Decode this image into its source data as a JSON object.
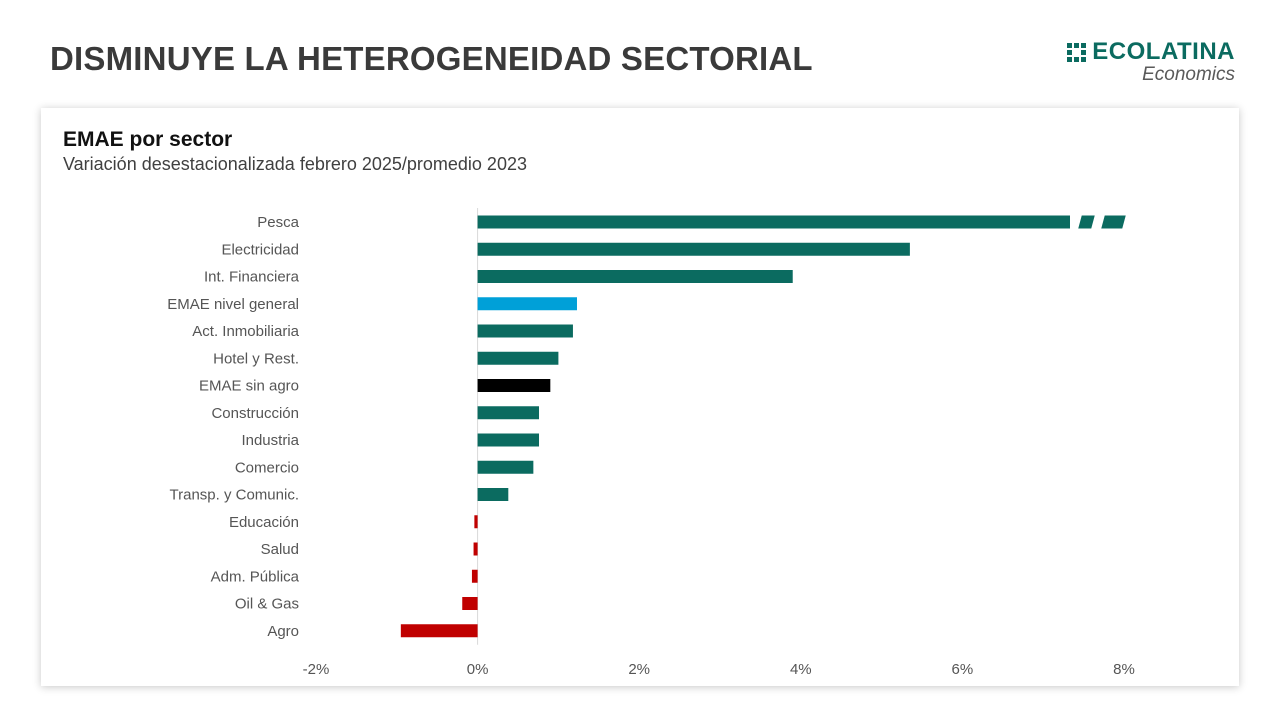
{
  "page": {
    "title": "DISMINUYE LA HETEROGENEIDAD SECTORIAL"
  },
  "logo": {
    "name": "ECOLATINA",
    "sub": "Economics",
    "color": "#0b6b60"
  },
  "colors": {
    "sector": "#0b6b60",
    "general": "#00a0d8",
    "sin_agro": "#000000",
    "negative": "#c00000",
    "card_bg": "#ffffff"
  },
  "chart_data": {
    "type": "bar",
    "orientation": "horizontal",
    "title": "EMAE por sector",
    "subtitle": "Variación desestacionalizada febrero 2025/promedio 2023",
    "categories": [
      "Pesca",
      "Electricidad",
      "Int. Financiera",
      "EMAE nivel general",
      "Act. Inmobiliaria",
      "Hotel y Rest.",
      "EMAE sin agro",
      "Construcción",
      "Industria",
      "Comercio",
      "Transp. y Comunic.",
      "Educación",
      "Salud",
      "Adm. Pública",
      "Oil & Gas",
      "Agro"
    ],
    "values": [
      8.0,
      5.35,
      3.9,
      1.23,
      1.18,
      1.0,
      0.9,
      0.76,
      0.76,
      0.69,
      0.38,
      -0.04,
      -0.05,
      -0.07,
      -0.19,
      -0.95
    ],
    "bar_colors": [
      "#0b6b60",
      "#0b6b60",
      "#0b6b60",
      "#00a0d8",
      "#0b6b60",
      "#0b6b60",
      "#000000",
      "#0b6b60",
      "#0b6b60",
      "#0b6b60",
      "#0b6b60",
      "#c00000",
      "#c00000",
      "#c00000",
      "#c00000",
      "#c00000"
    ],
    "axis_break": "Pesca",
    "xlim": [
      -2,
      8
    ],
    "xticks": [
      -2,
      0,
      2,
      4,
      6,
      8
    ],
    "xtick_labels": [
      "-2%",
      "0%",
      "2%",
      "4%",
      "6%",
      "8%"
    ],
    "grid": false,
    "legend": "none"
  }
}
